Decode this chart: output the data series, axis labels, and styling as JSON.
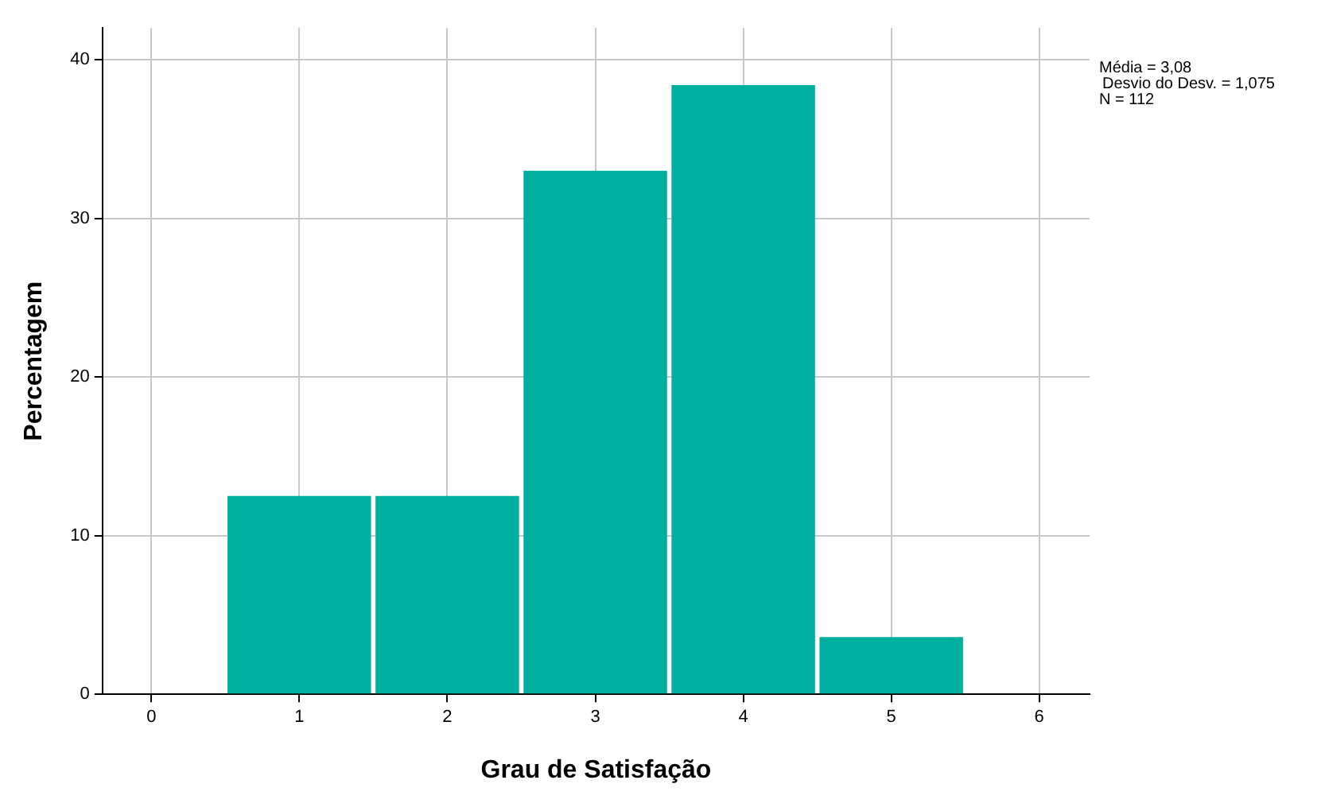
{
  "chart_data": {
    "type": "histogram",
    "xlabel": "Grau de Satisfação",
    "ylabel": "Percentagem",
    "bins": [
      0.5,
      1.5,
      2.5,
      3.5,
      4.5,
      5.5
    ],
    "values": [
      12.5,
      12.5,
      33.0,
      38.4,
      3.6
    ],
    "color": "#00b09f",
    "xlim": [
      -0.33,
      6.34
    ],
    "xticks": [
      0,
      1,
      2,
      3,
      4,
      5,
      6
    ],
    "ylim": [
      0,
      42
    ],
    "yticks": [
      0,
      10,
      20,
      30,
      40
    ],
    "grid": true,
    "annotations": [
      "Média = 3,08",
      "Desvio do Desv. = 1,075",
      "N = 112"
    ]
  }
}
